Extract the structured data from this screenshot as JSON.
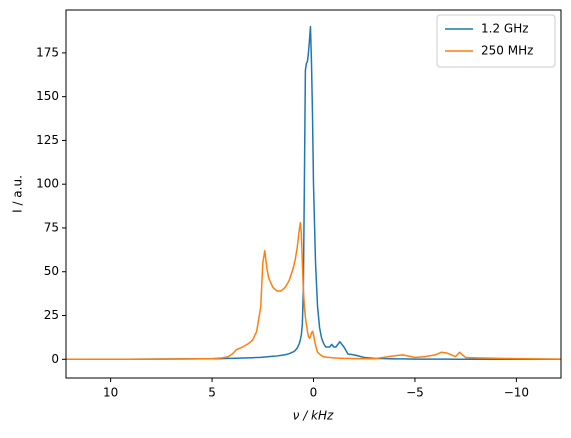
{
  "chart_data": {
    "type": "line",
    "xlabel": "ν / kHz",
    "ylabel": "I / a.u.",
    "x": [
      12.2,
      10,
      8,
      6,
      5,
      4.5,
      4.2,
      4.0,
      3.8,
      3.5,
      3.2,
      3.0,
      2.8,
      2.6,
      2.5,
      2.4,
      2.3,
      2.2,
      2.0,
      1.8,
      1.6,
      1.4,
      1.2,
      1.0,
      0.9,
      0.8,
      0.7,
      0.65,
      0.6,
      0.55,
      0.5,
      0.45,
      0.4,
      0.35,
      0.3,
      0.25,
      0.2,
      0.15,
      0.1,
      0.05,
      0,
      -0.1,
      -0.2,
      -0.3,
      -0.4,
      -0.5,
      -0.6,
      -0.8,
      -0.9,
      -1.0,
      -1.1,
      -1.3,
      -1.5,
      -1.7,
      -2.0,
      -2.5,
      -3.0,
      -3.7,
      -4.0,
      -4.4,
      -5.0,
      -5.5,
      -6.0,
      -6.3,
      -6.6,
      -7.0,
      -7.2,
      -7.5,
      -8.0,
      -9.0,
      -10,
      -11,
      -12.2
    ],
    "series": [
      {
        "name": "1.2 GHz",
        "color": "#1f77b4",
        "values": [
          0,
          0,
          0.1,
          0.2,
          0.3,
          0.4,
          0.5,
          0.5,
          0.6,
          0.7,
          0.8,
          0.9,
          1.0,
          1.1,
          1.2,
          1.3,
          1.4,
          1.5,
          1.7,
          1.9,
          2.2,
          2.6,
          3.2,
          4.2,
          5,
          6.5,
          9,
          11,
          14,
          20,
          40,
          100,
          165,
          169,
          170,
          175,
          182,
          190,
          170,
          140,
          100,
          55,
          30,
          18,
          12,
          9,
          7,
          7,
          8.5,
          7,
          7,
          10,
          7,
          3,
          2.5,
          1,
          0.5,
          0.3,
          0.2,
          0.2,
          0.1,
          0.1,
          0.1,
          0.1,
          0.1,
          0,
          0,
          0,
          0,
          0,
          0,
          0,
          0
        ]
      },
      {
        "name": "250 MHz",
        "color": "#ff7f0e",
        "values": [
          0,
          0,
          0.1,
          0.2,
          0.4,
          0.8,
          1.5,
          3,
          5.5,
          7,
          9,
          11,
          16,
          30,
          55,
          62,
          52,
          46,
          41,
          39,
          39,
          41,
          45,
          52,
          57,
          64,
          74,
          78,
          72,
          55,
          40,
          30,
          24,
          20,
          16,
          13,
          12,
          13,
          15,
          16,
          14,
          8,
          4,
          3,
          2,
          1.5,
          1.2,
          1,
          0.9,
          0.8,
          0.7,
          0.6,
          0.5,
          0.5,
          0.4,
          0.3,
          0.3,
          1.5,
          2,
          2.5,
          1,
          1.5,
          2.5,
          4,
          3.5,
          1.5,
          4,
          1,
          0.8,
          0.6,
          0.4,
          0.2,
          0.1
        ]
      }
    ],
    "xlim": [
      12.2,
      -12.2
    ],
    "ylim": [
      -10.7,
      199.5
    ],
    "xticks": [
      10,
      5,
      0,
      {
        "value": -5,
        "label": "−5"
      },
      {
        "value": -10,
        "label": "−10"
      }
    ],
    "yticks": [
      0,
      25,
      50,
      75,
      100,
      125,
      150,
      175
    ],
    "legend": "upper right",
    "grid": false
  }
}
